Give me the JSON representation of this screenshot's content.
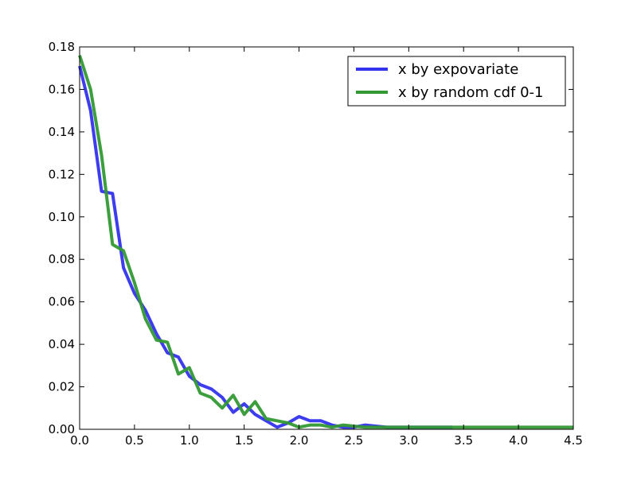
{
  "chart_data": {
    "type": "line",
    "title": "",
    "xlabel": "",
    "ylabel": "",
    "xlim": [
      0.0,
      4.5
    ],
    "ylim": [
      0.0,
      0.18
    ],
    "xticks": [
      "0.0",
      "0.5",
      "1.0",
      "1.5",
      "2.0",
      "2.5",
      "3.0",
      "3.5",
      "4.0",
      "4.5"
    ],
    "yticks": [
      "0.00",
      "0.02",
      "0.04",
      "0.06",
      "0.08",
      "0.10",
      "0.12",
      "0.14",
      "0.16",
      "0.18"
    ],
    "grid": false,
    "legend_position": "top-right",
    "series": [
      {
        "name": "x by expovariate",
        "color": "#3333ee",
        "x": [
          0.0,
          0.1,
          0.2,
          0.3,
          0.4,
          0.5,
          0.6,
          0.7,
          0.8,
          0.9,
          1.0,
          1.1,
          1.2,
          1.3,
          1.4,
          1.5,
          1.6,
          1.7,
          1.8,
          1.9,
          2.0,
          2.1,
          2.2,
          2.3,
          2.4,
          2.5,
          2.6,
          2.7,
          2.8,
          2.9,
          3.0,
          3.1,
          3.2,
          3.3,
          3.4
        ],
        "y": [
          0.171,
          0.15,
          0.112,
          0.111,
          0.076,
          0.064,
          0.056,
          0.045,
          0.036,
          0.034,
          0.025,
          0.021,
          0.019,
          0.015,
          0.008,
          0.012,
          0.007,
          0.004,
          0.001,
          0.003,
          0.006,
          0.004,
          0.004,
          0.002,
          0.001,
          0.001,
          0.002,
          0.0015,
          0.001,
          0.001,
          0.001,
          0.001,
          0.001,
          0.001,
          0.001
        ]
      },
      {
        "name": "x by random cdf 0-1",
        "color": "#339933",
        "x": [
          0.0,
          0.1,
          0.2,
          0.3,
          0.4,
          0.5,
          0.6,
          0.7,
          0.8,
          0.9,
          1.0,
          1.1,
          1.2,
          1.3,
          1.4,
          1.5,
          1.6,
          1.7,
          1.8,
          1.9,
          2.0,
          2.1,
          2.2,
          2.3,
          2.4,
          2.5,
          2.6,
          2.7,
          2.8,
          2.9,
          3.0,
          3.1,
          3.2,
          3.3,
          3.4,
          3.5,
          3.6,
          3.7,
          3.8,
          3.9,
          4.0,
          4.1,
          4.2,
          4.3,
          4.4,
          4.5
        ],
        "y": [
          0.176,
          0.16,
          0.129,
          0.087,
          0.084,
          0.069,
          0.052,
          0.042,
          0.041,
          0.026,
          0.029,
          0.017,
          0.015,
          0.01,
          0.016,
          0.007,
          0.013,
          0.005,
          0.004,
          0.003,
          0.001,
          0.002,
          0.002,
          0.001,
          0.002,
          0.0015,
          0.001,
          0.001,
          0.001,
          0.001,
          0.001,
          0.001,
          0.001,
          0.001,
          0.001,
          0.001,
          0.001,
          0.001,
          0.001,
          0.001,
          0.001,
          0.001,
          0.001,
          0.001,
          0.001,
          0.001
        ]
      }
    ]
  }
}
